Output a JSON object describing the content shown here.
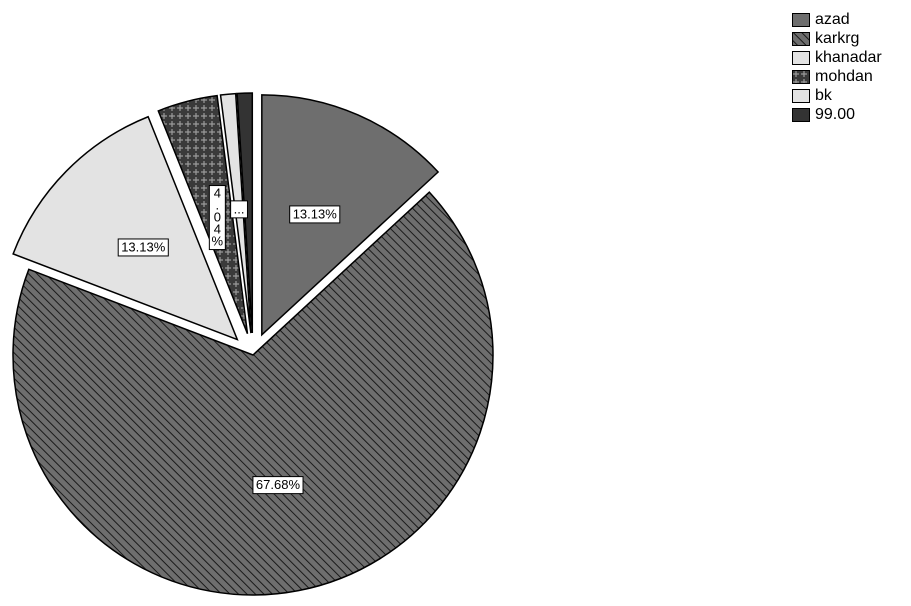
{
  "chart_data": {
    "type": "pie",
    "title": "",
    "slices": [
      {
        "name": "azad",
        "value": 13.13,
        "label": "13.13%",
        "color": "#6e6e6e",
        "pattern": "solid",
        "exploded": true
      },
      {
        "name": "karkrg",
        "value": 67.68,
        "label": "67.68%",
        "color": "#6e6e6e",
        "pattern": "hatch",
        "exploded": false
      },
      {
        "name": "khanadar",
        "value": 13.13,
        "label": "13.13%",
        "color": "#e3e3e3",
        "pattern": "solid",
        "exploded": true
      },
      {
        "name": "mohdan",
        "value": 4.04,
        "label": "4.04%",
        "color": "#3a3a3a",
        "pattern": "plus",
        "exploded": true
      },
      {
        "name": "bk",
        "value": 1.01,
        "label": "...",
        "color": "#e3e3e3",
        "pattern": "solid",
        "exploded": true
      },
      {
        "name": "99.00",
        "value": 1.01,
        "label": "",
        "color": "#333333",
        "pattern": "solid",
        "exploded": true
      }
    ],
    "legend_position": "top-right"
  }
}
